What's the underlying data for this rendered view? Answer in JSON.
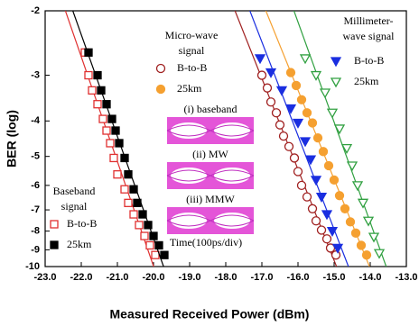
{
  "chart_data": {
    "type": "scatter",
    "x_label": "Measured Received Power (dBm)",
    "y_label": "BER (log)",
    "xlim": [
      -23,
      -13
    ],
    "xticks": [
      {
        "value": -23,
        "label": "-23.0"
      },
      {
        "value": -22,
        "label": "-22.0"
      },
      {
        "value": -21,
        "label": "-21.0"
      },
      {
        "value": -20,
        "label": "-20.0"
      },
      {
        "value": -19,
        "label": "-19.0"
      },
      {
        "value": -18,
        "label": "-18.0"
      },
      {
        "value": -17,
        "label": "-17.0"
      },
      {
        "value": -16,
        "label": "-16.0"
      },
      {
        "value": -15,
        "label": "-15.0"
      },
      {
        "value": -14,
        "label": "-14.0"
      },
      {
        "value": -13,
        "label": "-13.0"
      }
    ],
    "ylim": [
      -2,
      -10
    ],
    "yticks": [
      -2,
      -3,
      -4,
      -5,
      -6,
      -7,
      -8,
      -9,
      -10
    ],
    "yscale": "loglog",
    "groups": [
      {
        "title": [
          "Baseband",
          "signal"
        ],
        "series": [
          {
            "name": "B-to-B",
            "color": "#e03030",
            "marker": "square",
            "filled": false,
            "x": [
              -21.9,
              -21.8,
              -21.7,
              -21.55,
              -21.4,
              -21.3,
              -21.2,
              -21.1,
              -21.0,
              -20.8,
              -20.7,
              -20.55,
              -20.4,
              -20.25,
              -20.1,
              -19.95
            ],
            "values": [
              -2.6,
              -3.0,
              -3.3,
              -3.6,
              -3.95,
              -4.25,
              -4.6,
              -5.05,
              -5.6,
              -6.15,
              -6.7,
              -7.2,
              -7.7,
              -8.25,
              -8.75,
              -9.3
            ]
          },
          {
            "name": "25km",
            "color": "#000000",
            "marker": "square",
            "filled": true,
            "x": [
              -21.8,
              -21.55,
              -21.45,
              -21.3,
              -21.15,
              -21.05,
              -20.95,
              -20.8,
              -20.7,
              -20.55,
              -20.45,
              -20.3,
              -20.15,
              -20.0,
              -19.85,
              -19.7
            ],
            "values": [
              -2.6,
              -3.0,
              -3.3,
              -3.6,
              -3.95,
              -4.25,
              -4.6,
              -5.05,
              -5.6,
              -6.15,
              -6.7,
              -7.2,
              -7.7,
              -8.25,
              -8.75,
              -9.3
            ]
          }
        ]
      },
      {
        "title": [
          "Micro-wave",
          "signal"
        ],
        "series": [
          {
            "name": "B-to-B",
            "color": "#a02020",
            "marker": "circle",
            "filled": false,
            "x": [
              -17.0,
              -16.85,
              -16.75,
              -16.6,
              -16.5,
              -16.4,
              -16.25,
              -16.1,
              -16.0,
              -15.9,
              -15.75,
              -15.6,
              -15.5,
              -15.35,
              -15.2,
              -15.1,
              -14.95
            ],
            "values": [
              -3.0,
              -3.25,
              -3.55,
              -3.8,
              -4.1,
              -4.4,
              -4.7,
              -5.05,
              -5.5,
              -6.0,
              -6.45,
              -6.95,
              -7.5,
              -7.95,
              -8.4,
              -8.9,
              -9.3
            ]
          },
          {
            "name": "25km",
            "color": "#f5a030",
            "marker": "circle",
            "filled": true,
            "x": [
              -16.2,
              -16.05,
              -15.9,
              -15.75,
              -15.6,
              -15.45,
              -15.3,
              -15.15,
              -15.0,
              -14.85,
              -14.7,
              -14.55,
              -14.4,
              -14.25,
              -14.1
            ],
            "values": [
              -2.95,
              -3.2,
              -3.5,
              -3.8,
              -4.05,
              -4.45,
              -4.85,
              -5.3,
              -5.8,
              -6.4,
              -6.95,
              -7.55,
              -8.1,
              -8.75,
              -9.3
            ]
          }
        ]
      },
      {
        "title": [
          "Millimeter-",
          "wave signal"
        ],
        "series": [
          {
            "name": "B-to-B",
            "color": "#1a2ee0",
            "marker": "triangle-down",
            "filled": true,
            "x": [
              -17.05,
              -16.75,
              -16.45,
              -16.2,
              -16.0,
              -15.8,
              -15.65,
              -15.5,
              -15.35,
              -15.2,
              -15.05,
              -14.9
            ],
            "values": [
              -2.7,
              -2.95,
              -3.3,
              -3.7,
              -4.05,
              -4.55,
              -5.1,
              -5.8,
              -6.45,
              -7.2,
              -8.0,
              -8.9
            ]
          },
          {
            "name": "25km",
            "color": "#30a040",
            "marker": "triangle-down",
            "filled": false,
            "x": [
              -15.8,
              -15.5,
              -15.25,
              -15.05,
              -14.85,
              -14.65,
              -14.5,
              -14.35,
              -14.2,
              -14.05,
              -13.9,
              -13.75
            ],
            "values": [
              -2.7,
              -3.0,
              -3.35,
              -3.8,
              -4.2,
              -4.75,
              -5.3,
              -6.0,
              -6.7,
              -7.5,
              -8.3,
              -9.2
            ]
          }
        ]
      }
    ],
    "inset": {
      "labels": [
        "(i) baseband",
        "(ii) MW",
        "(iii) MMW"
      ],
      "x_label": "Time(100ps/div)"
    }
  }
}
